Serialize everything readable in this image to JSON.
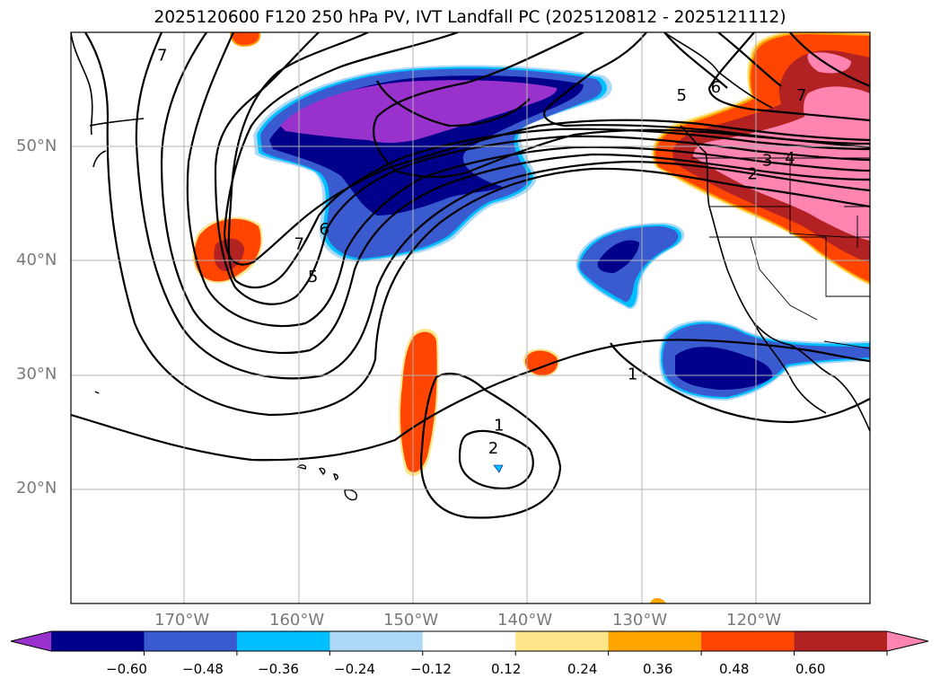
{
  "title": "2025120600 F120 250 hPa PV, IVT Landfall PC (2025120812 - 2025121112)",
  "map": {
    "projection": "plate carree",
    "lon_range": [
      -180,
      -110
    ],
    "lat_range": [
      10,
      60
    ],
    "grid": true,
    "lat_ticks": [
      {
        "value": 50,
        "label": "50°N"
      },
      {
        "value": 40,
        "label": "40°N"
      },
      {
        "value": 30,
        "label": "30°N"
      },
      {
        "value": 20,
        "label": "20°N"
      }
    ],
    "lon_ticks": [
      {
        "value": -170,
        "label": "170°W"
      },
      {
        "value": -160,
        "label": "160°W"
      },
      {
        "value": -150,
        "label": "150°W"
      },
      {
        "value": -140,
        "label": "140°W"
      },
      {
        "value": -130,
        "label": "130°W"
      },
      {
        "value": -120,
        "label": "120°W"
      }
    ],
    "contour_labels": [
      {
        "text": "7",
        "lon": -172,
        "lat": 58
      },
      {
        "text": "5",
        "lon": -126.5,
        "lat": 54.5
      },
      {
        "text": "6",
        "lon": -123.5,
        "lat": 55.2
      },
      {
        "text": "7",
        "lon": -116,
        "lat": 54.5
      },
      {
        "text": "3",
        "lon": -119,
        "lat": 48.8
      },
      {
        "text": "4",
        "lon": -117,
        "lat": 49
      },
      {
        "text": "2",
        "lon": -120.3,
        "lat": 47.6
      },
      {
        "text": "7",
        "lon": -160,
        "lat": 41.5
      },
      {
        "text": "6",
        "lon": -157.8,
        "lat": 42.8
      },
      {
        "text": "5",
        "lon": -158.8,
        "lat": 38.6
      },
      {
        "text": "1",
        "lon": -142.5,
        "lat": 25.6
      },
      {
        "text": "2",
        "lon": -143,
        "lat": 23.6
      },
      {
        "text": "1",
        "lon": -130.8,
        "lat": 30.1
      }
    ]
  },
  "colorbar": {
    "ticks": [
      "−0.60",
      "−0.48",
      "−0.36",
      "−0.24",
      "−0.12",
      "0.12",
      "0.24",
      "0.36",
      "0.48",
      "0.60"
    ],
    "colors": [
      "#9932cc",
      "#00008b",
      "#3a5bd0",
      "#00bfff",
      "#add8f6",
      "#ffffff",
      "#ffe58a",
      "#ffa500",
      "#ff4500",
      "#b22222",
      "#ff85b0"
    ]
  }
}
